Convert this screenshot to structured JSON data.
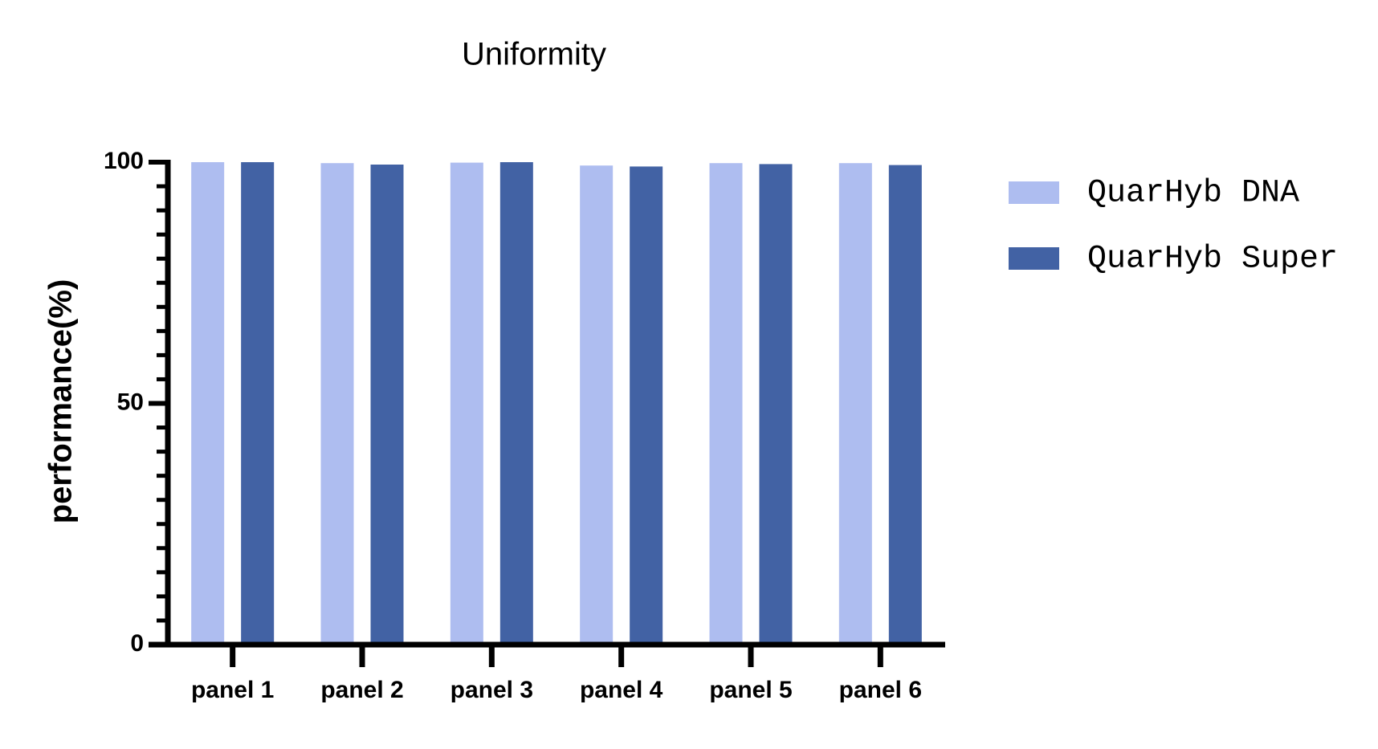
{
  "chart_data": {
    "type": "bar",
    "title": "Uniformity",
    "y_label": "performance(%)",
    "categories": [
      "panel 1",
      "panel 2",
      "panel 3",
      "panel 4",
      "panel 5",
      "panel 6"
    ],
    "series": [
      {
        "name": "QuarHyb DNA",
        "color": "#aebdf0",
        "values": [
          100,
          99.8,
          99.9,
          99.3,
          99.8,
          99.8
        ]
      },
      {
        "name": "QuarHyb Super",
        "color": "#4262a4",
        "values": [
          100,
          99.5,
          100,
          99.1,
          99.6,
          99.4
        ]
      }
    ],
    "ylim": [
      0,
      100
    ],
    "yticks": [
      0,
      50,
      100
    ],
    "legend": "right"
  }
}
